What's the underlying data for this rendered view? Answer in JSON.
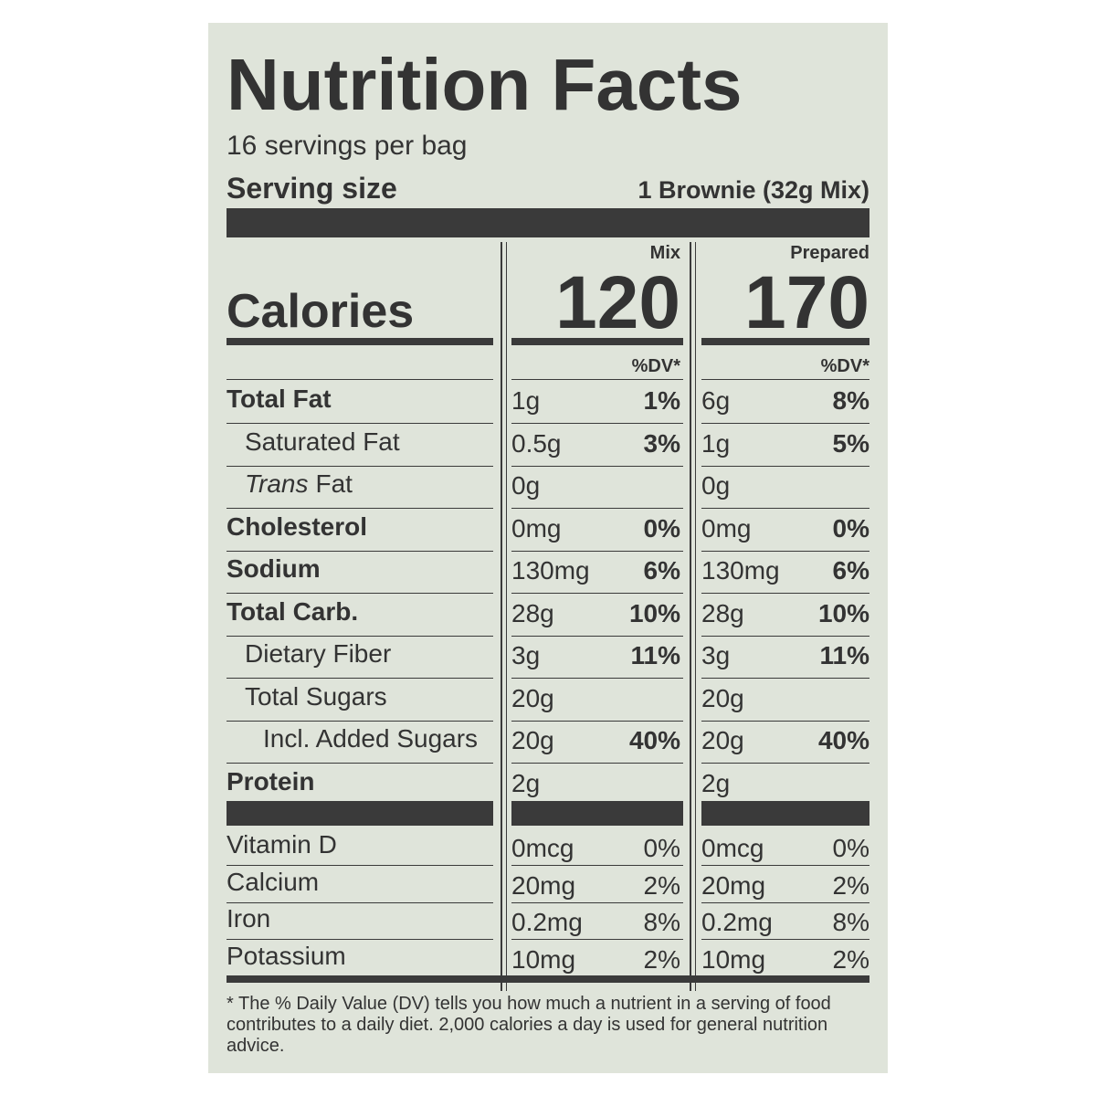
{
  "title": "Nutrition Facts",
  "servings": "16 servings per bag",
  "serving_size": {
    "label": "Serving size",
    "value": "1 Brownie (32g Mix)"
  },
  "columns": [
    "Mix",
    "Prepared"
  ],
  "calories": {
    "label": "Calories",
    "values": [
      "120",
      "170"
    ]
  },
  "dv_header": [
    "%DV*",
    "%DV*"
  ],
  "nutrients": [
    {
      "name": "Total Fat",
      "bold": true,
      "indent": 0,
      "mix": [
        "1g",
        "1%"
      ],
      "prepared": [
        "6g",
        "8%"
      ]
    },
    {
      "name": "Saturated Fat",
      "bold": false,
      "indent": 1,
      "mix": [
        "0.5g",
        "3%"
      ],
      "prepared": [
        "1g",
        "5%"
      ]
    },
    {
      "italic_prefix": "Trans",
      "name": "Fat",
      "bold": false,
      "indent": 1,
      "mix": [
        "0g",
        null
      ],
      "prepared": [
        "0g",
        null
      ]
    },
    {
      "name": "Cholesterol",
      "bold": true,
      "indent": 0,
      "mix": [
        "0mg",
        "0%"
      ],
      "prepared": [
        "0mg",
        "0%"
      ]
    },
    {
      "name": "Sodium",
      "bold": true,
      "indent": 0,
      "mix": [
        "130mg",
        "6%"
      ],
      "prepared": [
        "130mg",
        "6%"
      ]
    },
    {
      "name": "Total Carb.",
      "bold": true,
      "indent": 0,
      "mix": [
        "28g",
        "10%"
      ],
      "prepared": [
        "28g",
        "10%"
      ]
    },
    {
      "name": "Dietary Fiber",
      "bold": false,
      "indent": 1,
      "mix": [
        "3g",
        "11%"
      ],
      "prepared": [
        "3g",
        "11%"
      ]
    },
    {
      "name": "Total Sugars",
      "bold": false,
      "indent": 1,
      "mix": [
        "20g",
        null
      ],
      "prepared": [
        "20g",
        null
      ]
    },
    {
      "name": "Incl. Added Sugars",
      "bold": false,
      "indent": 2,
      "mix": [
        "20g",
        "40%"
      ],
      "prepared": [
        "20g",
        "40%"
      ]
    },
    {
      "name": "Protein",
      "bold": true,
      "indent": 0,
      "mix": [
        "2g",
        null
      ],
      "prepared": [
        "2g",
        null
      ]
    }
  ],
  "vitamins": [
    {
      "name": "Vitamin D",
      "mix": [
        "0mcg",
        "0%"
      ],
      "prepared": [
        "0mcg",
        "0%"
      ]
    },
    {
      "name": "Calcium",
      "mix": [
        "20mg",
        "2%"
      ],
      "prepared": [
        "20mg",
        "2%"
      ]
    },
    {
      "name": "Iron",
      "mix": [
        "0.2mg",
        "8%"
      ],
      "prepared": [
        "0.2mg",
        "8%"
      ]
    },
    {
      "name": "Potassium",
      "mix": [
        "10mg",
        "2%"
      ],
      "prepared": [
        "10mg",
        "2%"
      ]
    }
  ],
  "footnote": "* The % Daily Value (DV) tells you how much a nutrient in a serving of food contributes to a daily diet. 2,000 calories a day is used for general nutrition advice."
}
